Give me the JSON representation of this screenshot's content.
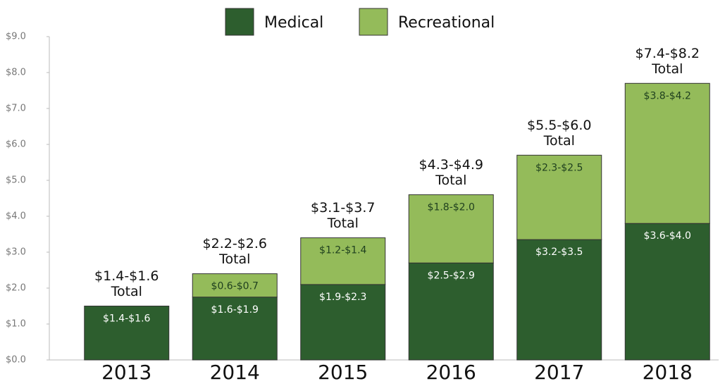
{
  "chart_data": {
    "type": "stacked_bar",
    "categories": [
      "2013",
      "2014",
      "2015",
      "2016",
      "2017",
      "2018"
    ],
    "series": [
      {
        "name": "Medical",
        "color": "#2d5e2e",
        "values": [
          1.5,
          1.75,
          2.1,
          2.7,
          3.35,
          3.8
        ],
        "value_labels": [
          "$1.4-$1.6",
          "$1.6-$1.9",
          "$1.9-$2.3",
          "$2.5-$2.9",
          "$3.2-$3.5",
          "$3.6-$4.0"
        ]
      },
      {
        "name": "Recreational",
        "color": "#94bb5a",
        "values": [
          null,
          0.65,
          1.3,
          1.9,
          2.35,
          3.9
        ],
        "value_labels": [
          null,
          "$0.6-$0.7",
          "$1.2-$1.4",
          "$1.8-$2.0",
          "$2.3-$2.5",
          "$3.8-$4.2"
        ]
      }
    ],
    "total_labels": [
      [
        "$1.4-$1.6",
        "Total"
      ],
      [
        "$2.2-$2.6",
        "Total"
      ],
      [
        "$3.1-$3.7",
        "Total"
      ],
      [
        "$4.3-$4.9",
        "Total"
      ],
      [
        "$5.5-$6.0",
        "Total"
      ],
      [
        "$7.4-$8.2",
        "Total"
      ]
    ],
    "ylim": [
      0,
      9
    ],
    "yticks": [
      {
        "value": 0,
        "label": "$0.0"
      },
      {
        "value": 1,
        "label": "$1.0"
      },
      {
        "value": 2,
        "label": "$2.0"
      },
      {
        "value": 3,
        "label": "$3.0"
      },
      {
        "value": 4,
        "label": "$4.0"
      },
      {
        "value": 5,
        "label": "$5.0"
      },
      {
        "value": 6,
        "label": "$6.0"
      },
      {
        "value": 7,
        "label": "$7.0"
      },
      {
        "value": 8,
        "label": "$8.0"
      },
      {
        "value": 9,
        "label": "$9.0"
      }
    ],
    "legend": "top",
    "grid": false
  }
}
